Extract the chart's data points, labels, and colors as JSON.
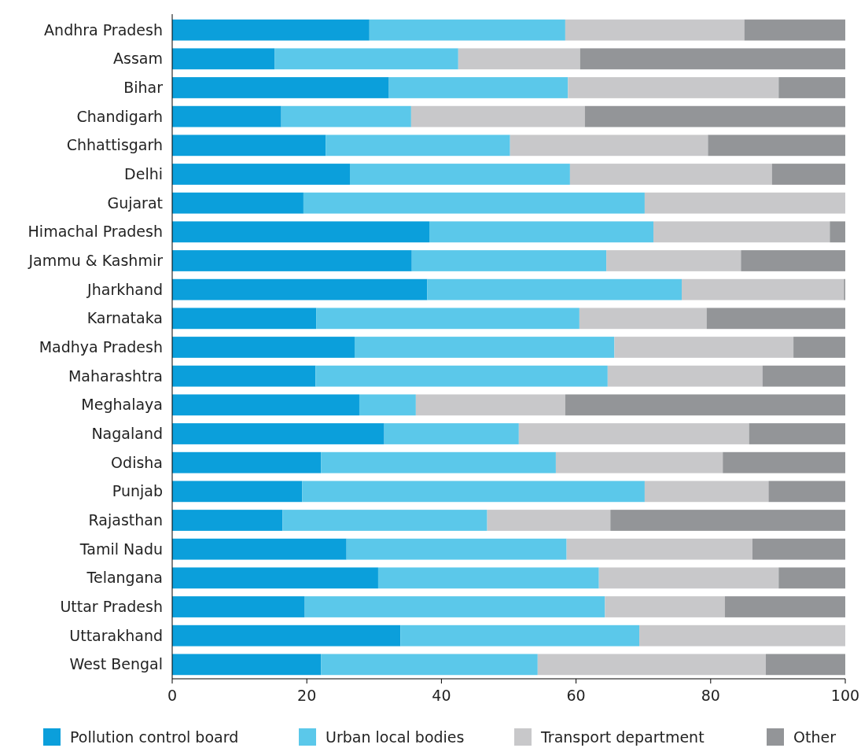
{
  "chart_data": {
    "type": "bar",
    "orientation": "horizontal",
    "stacked": true,
    "categories": [
      "Andhra Pradesh",
      "Assam",
      "Bihar",
      "Chandigarh",
      "Chhattisgarh",
      "Delhi",
      "Gujarat",
      "Himachal Pradesh",
      "Jammu & Kashmir",
      "Jharkhand",
      "Karnataka",
      "Madhya Pradesh",
      "Maharashtra",
      "Meghalaya",
      "Nagaland",
      "Odisha",
      "Punjab",
      "Rajasthan",
      "Tamil Nadu",
      "Telangana",
      "Uttar Pradesh",
      "Uttarakhand",
      "West Bengal"
    ],
    "series": [
      {
        "name": "Pollution control board",
        "color": "#0b9fdb",
        "values": [
          29.3,
          15.2,
          32.2,
          16.2,
          22.8,
          26.4,
          19.5,
          38.2,
          35.6,
          37.9,
          21.4,
          27.1,
          21.3,
          27.8,
          31.5,
          22.1,
          19.3,
          16.4,
          25.9,
          30.6,
          19.7,
          33.9,
          22.1
        ]
      },
      {
        "name": "Urban local bodies",
        "color": "#5bc8ea",
        "values": [
          29.1,
          27.3,
          26.6,
          19.3,
          27.4,
          32.7,
          50.7,
          33.3,
          28.9,
          37.8,
          39.1,
          38.6,
          43.4,
          8.4,
          20.0,
          34.9,
          50.9,
          30.4,
          32.7,
          32.8,
          44.6,
          35.5,
          32.2
        ]
      },
      {
        "name": "Transport department",
        "color": "#c8c8ca",
        "values": [
          26.6,
          18.1,
          31.3,
          25.8,
          29.4,
          30.0,
          29.8,
          26.2,
          20.0,
          24.1,
          18.9,
          26.6,
          23.0,
          22.2,
          34.2,
          24.8,
          18.4,
          18.3,
          27.6,
          26.7,
          17.8,
          30.6,
          33.9
        ]
      },
      {
        "name": "Other",
        "color": "#939598",
        "values": [
          15.0,
          39.4,
          9.9,
          38.7,
          20.4,
          10.9,
          0,
          2.3,
          15.5,
          0.2,
          20.6,
          7.7,
          12.3,
          41.6,
          14.3,
          18.2,
          11.4,
          34.9,
          13.8,
          9.9,
          17.9,
          0,
          11.8
        ]
      }
    ],
    "xlim": [
      0,
      100
    ],
    "xticks": [
      0,
      20,
      40,
      60,
      80,
      100
    ],
    "legend": "bottom"
  }
}
